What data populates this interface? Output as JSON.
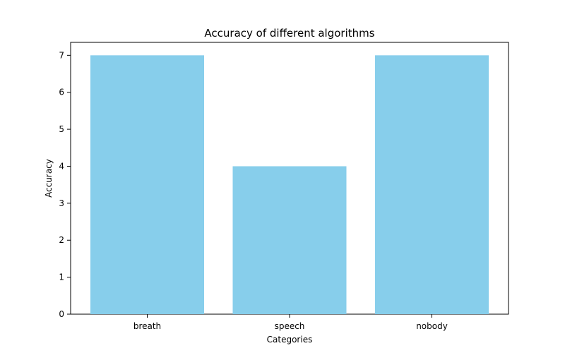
{
  "chart_data": {
    "type": "bar",
    "title": "Accuracy of different algorithms",
    "xlabel": "Categories",
    "ylabel": "Accuracy",
    "categories": [
      "breath",
      "speech",
      "nobody"
    ],
    "values": [
      7,
      4,
      7
    ],
    "ylim": [
      0,
      7.35
    ],
    "yticks": [
      "0",
      "1",
      "2",
      "3",
      "4",
      "5",
      "6",
      "7"
    ],
    "bar_color": "#87CEEB",
    "grid": false,
    "legend": "none"
  }
}
